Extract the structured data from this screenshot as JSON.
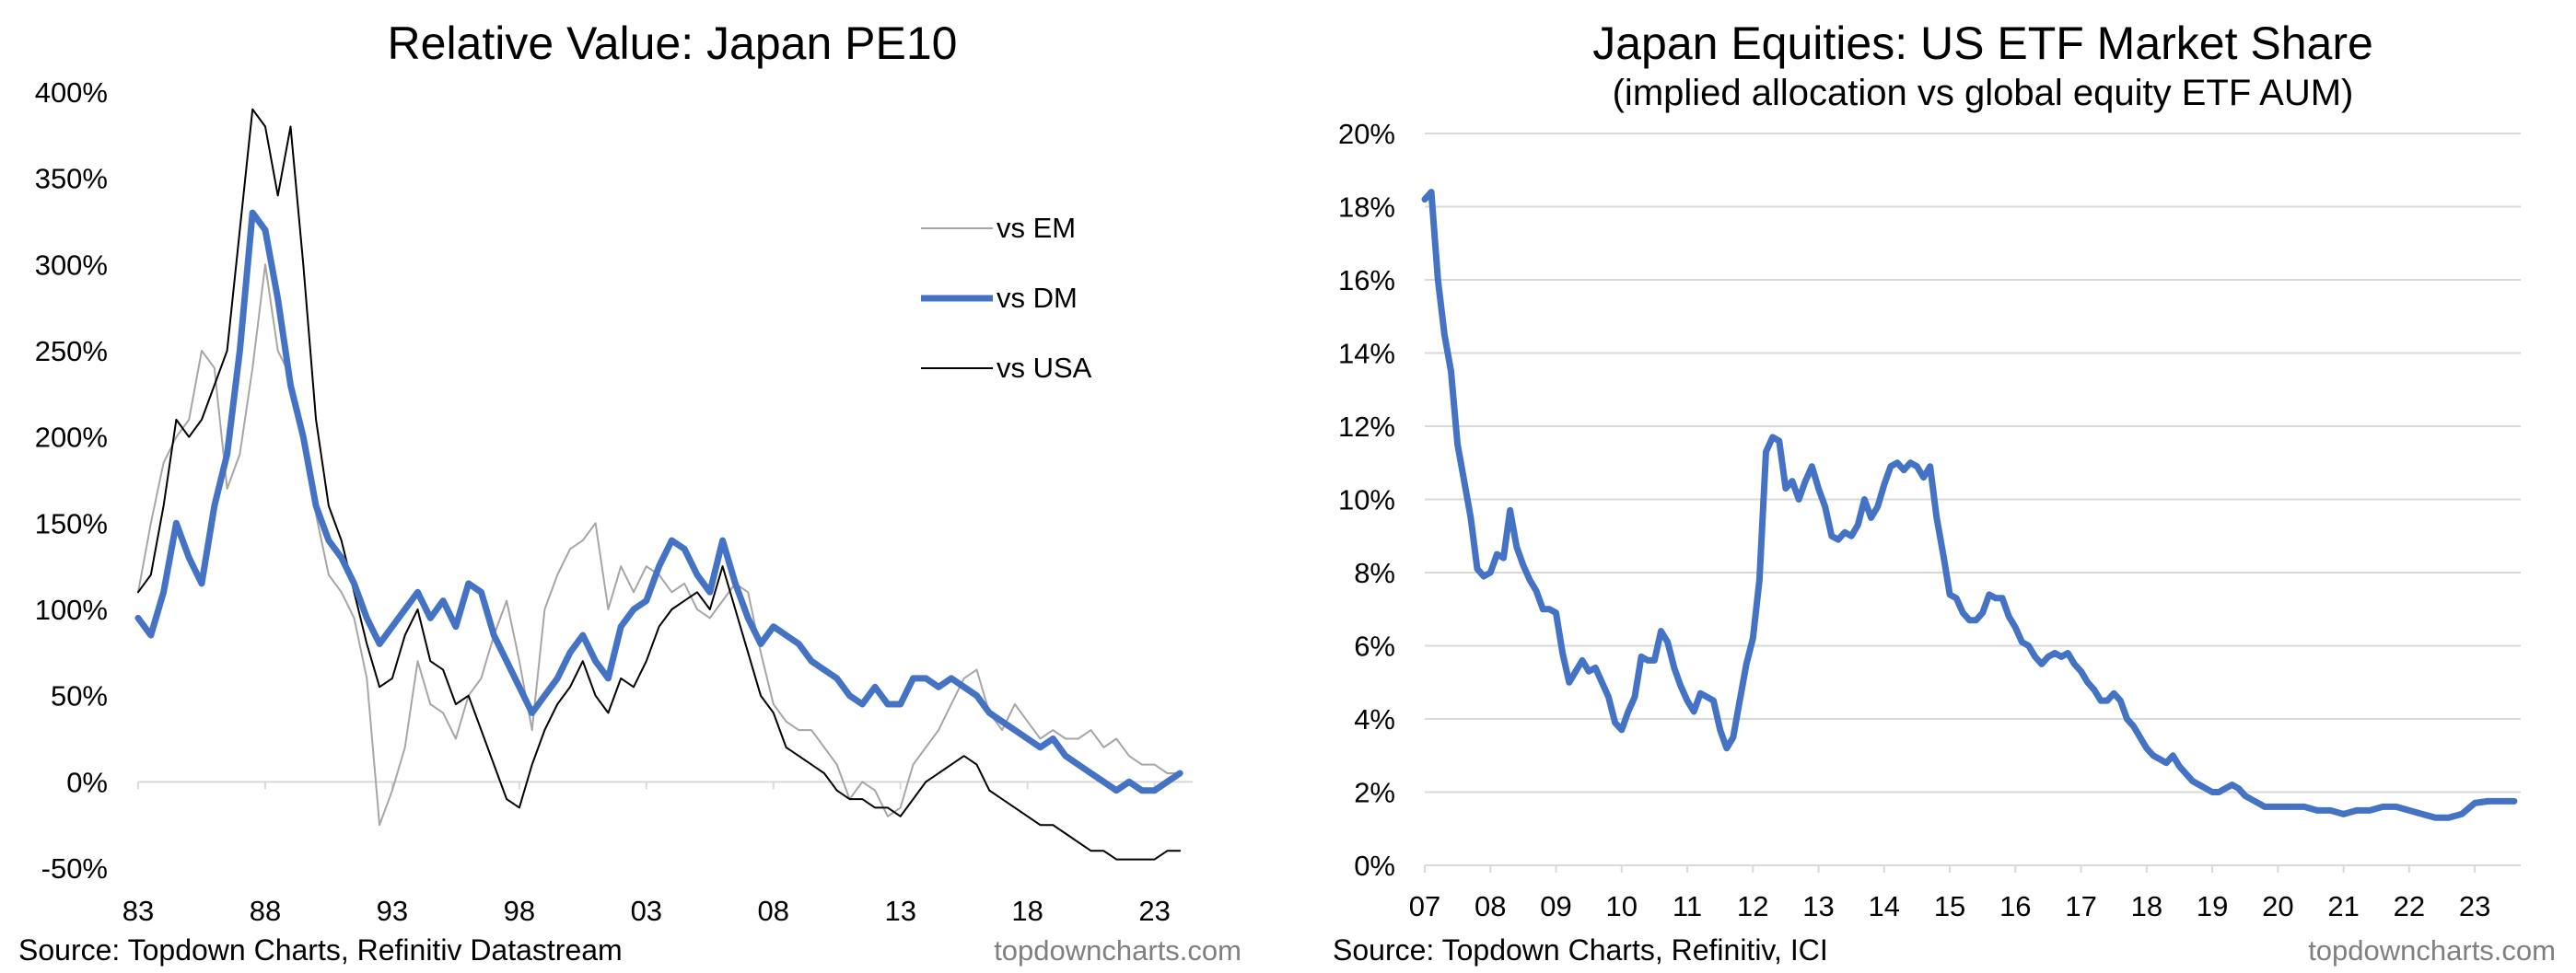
{
  "chart_data": [
    {
      "type": "line",
      "title": "Relative Value: Japan PE10",
      "xlabel": "",
      "ylabel": "",
      "x_ticks": [
        "83",
        "88",
        "93",
        "98",
        "03",
        "08",
        "13",
        "18",
        "23"
      ],
      "y_ticks": [
        "400%",
        "350%",
        "300%",
        "250%",
        "200%",
        "150%",
        "100%",
        "50%",
        "0%",
        "-50%"
      ],
      "x_range": [
        1983,
        2024.5
      ],
      "ylim": [
        -50,
        400
      ],
      "grid": false,
      "legend_position": "right",
      "series": [
        {
          "name": "vs EM",
          "color": "#a6a6a6",
          "x": [
            1983,
            1983.5,
            1984,
            1984.5,
            1985,
            1985.5,
            1986,
            1986.5,
            1987,
            1987.5,
            1988,
            1988.5,
            1989,
            1989.5,
            1990,
            1990.5,
            1991,
            1991.5,
            1992,
            1992.5,
            1993,
            1993.5,
            1994,
            1994.5,
            1995,
            1995.5,
            1996,
            1996.5,
            1997,
            1997.5,
            1998,
            1998.5,
            1999,
            1999.5,
            2000,
            2000.5,
            2001,
            2001.5,
            2002,
            2002.5,
            2003,
            2003.5,
            2004,
            2004.5,
            2005,
            2005.5,
            2006,
            2006.5,
            2007,
            2007.5,
            2008,
            2008.5,
            2009,
            2009.5,
            2010,
            2010.5,
            2011,
            2011.5,
            2012,
            2012.5,
            2013,
            2013.5,
            2014,
            2014.5,
            2015,
            2015.5,
            2016,
            2016.5,
            2017,
            2017.5,
            2018,
            2018.5,
            2019,
            2019.5,
            2020,
            2020.5,
            2021,
            2021.5,
            2022,
            2022.5,
            2023,
            2023.5,
            2024
          ],
          "y": [
            110,
            150,
            185,
            200,
            210,
            250,
            240,
            170,
            190,
            240,
            300,
            250,
            235,
            200,
            155,
            120,
            110,
            95,
            60,
            -25,
            -5,
            20,
            70,
            45,
            40,
            25,
            50,
            60,
            85,
            105,
            70,
            30,
            100,
            120,
            135,
            140,
            150,
            100,
            125,
            110,
            125,
            120,
            110,
            115,
            100,
            95,
            105,
            115,
            110,
            75,
            45,
            35,
            30,
            30,
            20,
            10,
            -10,
            0,
            -5,
            -20,
            -15,
            10,
            20,
            30,
            45,
            60,
            65,
            40,
            30,
            45,
            35,
            25,
            30,
            25,
            25,
            30,
            20,
            25,
            15,
            10,
            10,
            5,
            5
          ]
        },
        {
          "name": "vs DM",
          "color": "#4472c4",
          "x": [
            1983,
            1983.5,
            1984,
            1984.5,
            1985,
            1985.5,
            1986,
            1986.5,
            1987,
            1987.5,
            1988,
            1988.5,
            1989,
            1989.5,
            1990,
            1990.5,
            1991,
            1991.5,
            1992,
            1992.5,
            1993,
            1993.5,
            1994,
            1994.5,
            1995,
            1995.5,
            1996,
            1996.5,
            1997,
            1997.5,
            1998,
            1998.5,
            1999,
            1999.5,
            2000,
            2000.5,
            2001,
            2001.5,
            2002,
            2002.5,
            2003,
            2003.5,
            2004,
            2004.5,
            2005,
            2005.5,
            2006,
            2006.5,
            2007,
            2007.5,
            2008,
            2008.5,
            2009,
            2009.5,
            2010,
            2010.5,
            2011,
            2011.5,
            2012,
            2012.5,
            2013,
            2013.5,
            2014,
            2014.5,
            2015,
            2015.5,
            2016,
            2016.5,
            2017,
            2017.5,
            2018,
            2018.5,
            2019,
            2019.5,
            2020,
            2020.5,
            2021,
            2021.5,
            2022,
            2022.5,
            2023,
            2023.5,
            2024
          ],
          "y": [
            95,
            85,
            110,
            150,
            130,
            115,
            160,
            190,
            250,
            330,
            320,
            280,
            230,
            200,
            160,
            140,
            130,
            115,
            95,
            80,
            90,
            100,
            110,
            95,
            105,
            90,
            115,
            110,
            85,
            70,
            55,
            40,
            50,
            60,
            75,
            85,
            70,
            60,
            90,
            100,
            105,
            125,
            140,
            135,
            120,
            110,
            140,
            115,
            95,
            80,
            90,
            85,
            80,
            70,
            65,
            60,
            50,
            45,
            55,
            45,
            45,
            60,
            60,
            55,
            60,
            55,
            50,
            40,
            35,
            30,
            25,
            20,
            25,
            15,
            10,
            5,
            0,
            -5,
            0,
            -5,
            -5,
            0,
            5
          ]
        },
        {
          "name": "vs USA",
          "color": "#000000",
          "x": [
            1983,
            1983.5,
            1984,
            1984.5,
            1985,
            1985.5,
            1986,
            1986.5,
            1987,
            1987.5,
            1988,
            1988.5,
            1989,
            1989.5,
            1990,
            1990.5,
            1991,
            1991.5,
            1992,
            1992.5,
            1993,
            1993.5,
            1994,
            1994.5,
            1995,
            1995.5,
            1996,
            1996.5,
            1997,
            1997.5,
            1998,
            1998.5,
            1999,
            1999.5,
            2000,
            2000.5,
            2001,
            2001.5,
            2002,
            2002.5,
            2003,
            2003.5,
            2004,
            2004.5,
            2005,
            2005.5,
            2006,
            2006.5,
            2007,
            2007.5,
            2008,
            2008.5,
            2009,
            2009.5,
            2010,
            2010.5,
            2011,
            2011.5,
            2012,
            2012.5,
            2013,
            2013.5,
            2014,
            2014.5,
            2015,
            2015.5,
            2016,
            2016.5,
            2017,
            2017.5,
            2018,
            2018.5,
            2019,
            2019.5,
            2020,
            2020.5,
            2021,
            2021.5,
            2022,
            2022.5,
            2023,
            2023.5,
            2024
          ],
          "y": [
            110,
            120,
            160,
            210,
            200,
            210,
            230,
            250,
            320,
            390,
            380,
            340,
            380,
            300,
            210,
            160,
            140,
            110,
            80,
            55,
            60,
            85,
            100,
            70,
            65,
            45,
            50,
            30,
            10,
            -10,
            -15,
            10,
            30,
            45,
            55,
            70,
            50,
            40,
            60,
            55,
            70,
            90,
            100,
            105,
            110,
            100,
            125,
            100,
            75,
            50,
            40,
            20,
            15,
            10,
            5,
            -5,
            -10,
            -10,
            -15,
            -15,
            -20,
            -10,
            0,
            5,
            10,
            15,
            10,
            -5,
            -10,
            -15,
            -20,
            -25,
            -25,
            -30,
            -35,
            -40,
            -40,
            -45,
            -45,
            -45,
            -45,
            -40,
            -40
          ]
        }
      ]
    },
    {
      "type": "line",
      "title": "Japan Equities: US ETF Market Share",
      "subtitle": "(implied allocation vs global equity ETF AUM)",
      "xlabel": "",
      "ylabel": "",
      "x_ticks": [
        "07",
        "08",
        "09",
        "10",
        "11",
        "12",
        "13",
        "14",
        "15",
        "16",
        "17",
        "18",
        "19",
        "20",
        "21",
        "22",
        "23"
      ],
      "y_ticks": [
        "20%",
        "18%",
        "16%",
        "14%",
        "12%",
        "10%",
        "8%",
        "6%",
        "4%",
        "2%",
        "0%"
      ],
      "x_range": [
        2007,
        2023.7
      ],
      "ylim": [
        0,
        20
      ],
      "grid": true,
      "series": [
        {
          "name": "",
          "color": "#4472c4",
          "x": [
            2007,
            2007.1,
            2007.2,
            2007.3,
            2007.4,
            2007.5,
            2007.6,
            2007.7,
            2007.8,
            2007.9,
            2008,
            2008.1,
            2008.2,
            2008.3,
            2008.4,
            2008.5,
            2008.6,
            2008.7,
            2008.8,
            2008.9,
            2009,
            2009.1,
            2009.2,
            2009.3,
            2009.4,
            2009.5,
            2009.6,
            2009.7,
            2009.8,
            2009.9,
            2010,
            2010.1,
            2010.2,
            2010.3,
            2010.4,
            2010.5,
            2010.6,
            2010.7,
            2010.8,
            2010.9,
            2011,
            2011.1,
            2011.2,
            2011.3,
            2011.4,
            2011.5,
            2011.6,
            2011.7,
            2011.8,
            2011.9,
            2012,
            2012.1,
            2012.2,
            2012.3,
            2012.4,
            2012.5,
            2012.6,
            2012.7,
            2012.8,
            2012.9,
            2013,
            2013.1,
            2013.2,
            2013.3,
            2013.4,
            2013.5,
            2013.6,
            2013.7,
            2013.8,
            2013.9,
            2014,
            2014.1,
            2014.2,
            2014.3,
            2014.4,
            2014.5,
            2014.6,
            2014.7,
            2014.8,
            2014.9,
            2015,
            2015.1,
            2015.2,
            2015.3,
            2015.4,
            2015.5,
            2015.6,
            2015.7,
            2015.8,
            2015.9,
            2016,
            2016.1,
            2016.2,
            2016.3,
            2016.4,
            2016.5,
            2016.6,
            2016.7,
            2016.8,
            2016.9,
            2017,
            2017.1,
            2017.2,
            2017.3,
            2017.4,
            2017.5,
            2017.6,
            2017.7,
            2017.8,
            2017.9,
            2018,
            2018.1,
            2018.2,
            2018.3,
            2018.4,
            2018.5,
            2018.6,
            2018.7,
            2018.8,
            2018.9,
            2019,
            2019.1,
            2019.2,
            2019.3,
            2019.4,
            2019.5,
            2019.6,
            2019.7,
            2019.8,
            2019.9,
            2020,
            2020.2,
            2020.4,
            2020.6,
            2020.8,
            2021,
            2021.2,
            2021.4,
            2021.6,
            2021.8,
            2022,
            2022.2,
            2022.4,
            2022.6,
            2022.8,
            2023,
            2023.2,
            2023.4,
            2023.6
          ],
          "y": [
            18.2,
            18.4,
            16.0,
            14.5,
            13.5,
            11.5,
            10.5,
            9.5,
            8.1,
            7.9,
            8.0,
            8.5,
            8.4,
            9.7,
            8.7,
            8.2,
            7.8,
            7.5,
            7.0,
            7.0,
            6.9,
            5.8,
            5.0,
            5.3,
            5.6,
            5.3,
            5.4,
            5.0,
            4.6,
            3.9,
            3.7,
            4.2,
            4.6,
            5.7,
            5.6,
            5.6,
            6.4,
            6.1,
            5.4,
            4.9,
            4.5,
            4.2,
            4.7,
            4.6,
            4.5,
            3.7,
            3.2,
            3.5,
            4.5,
            5.5,
            6.2,
            7.8,
            11.3,
            11.7,
            11.6,
            10.3,
            10.5,
            10.0,
            10.5,
            10.9,
            10.3,
            9.8,
            9.0,
            8.9,
            9.1,
            9.0,
            9.3,
            10.0,
            9.5,
            9.8,
            10.4,
            10.9,
            11.0,
            10.8,
            11.0,
            10.9,
            10.6,
            10.9,
            9.5,
            8.5,
            7.4,
            7.3,
            6.9,
            6.7,
            6.7,
            6.9,
            7.4,
            7.3,
            7.3,
            6.8,
            6.5,
            6.1,
            6.0,
            5.7,
            5.5,
            5.7,
            5.8,
            5.7,
            5.8,
            5.5,
            5.3,
            5.0,
            4.8,
            4.5,
            4.5,
            4.7,
            4.5,
            4.0,
            3.8,
            3.5,
            3.2,
            3.0,
            2.9,
            2.8,
            3.0,
            2.7,
            2.5,
            2.3,
            2.2,
            2.1,
            2.0,
            2.0,
            2.1,
            2.2,
            2.1,
            1.9,
            1.8,
            1.7,
            1.6,
            1.6,
            1.6,
            1.6,
            1.6,
            1.5,
            1.5,
            1.4,
            1.5,
            1.5,
            1.6,
            1.6,
            1.5,
            1.4,
            1.3,
            1.3,
            1.4,
            1.7,
            1.75,
            1.75,
            1.75
          ]
        }
      ]
    }
  ],
  "footer": {
    "left_source": "Source: Topdown Charts, Refinitiv Datastream",
    "left_credit": "topdowncharts.com",
    "right_source": "Source: Topdown Charts, Refinitiv, ICI",
    "right_credit": "topdowncharts.com"
  }
}
